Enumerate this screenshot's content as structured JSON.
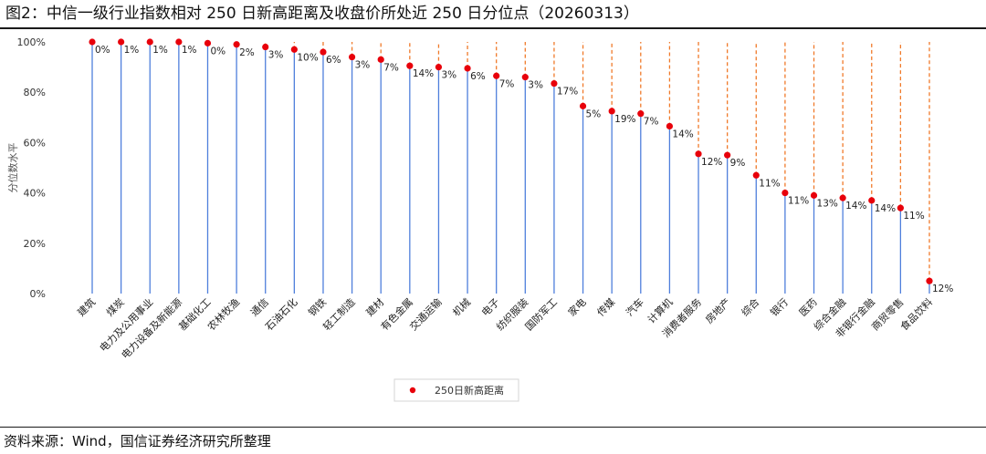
{
  "title": "图2：中信一级行业指数相对 250 日新高距离及收盘价所处近 250 日分位点（20260313）",
  "source": "资料来源：Wind，国信证券经济研究所整理",
  "chart_data": {
    "type": "scatter",
    "ylabel": "分位数水平",
    "ylim": [
      0,
      100
    ],
    "yticks": [
      "0%",
      "20%",
      "40%",
      "60%",
      "80%",
      "100%"
    ],
    "legend": {
      "label": "250日新高距离",
      "placement": "bottom"
    },
    "colors": {
      "point": "#e8000b",
      "stem_solid": "#4f7fdc",
      "stem_dash": "#f07a2a"
    },
    "categories": [
      "建筑",
      "煤炭",
      "电力及公用事业",
      "电力设备及新能源",
      "基础化工",
      "农林牧渔",
      "通信",
      "石油石化",
      "钢铁",
      "轻工制造",
      "建材",
      "有色金属",
      "交通运输",
      "机械",
      "电子",
      "纺织服装",
      "国防军工",
      "家电",
      "传媒",
      "汽车",
      "计算机",
      "消费者服务",
      "房地产",
      "综合",
      "银行",
      "医药",
      "综合金融",
      "非银行金融",
      "商贸零售",
      "食品饮料"
    ],
    "values": [
      100,
      100,
      100,
      100,
      99.5,
      99,
      98,
      97,
      96,
      94,
      93,
      90.5,
      90,
      89.5,
      86.5,
      86,
      83.5,
      74.5,
      72.5,
      71.5,
      66.5,
      55.5,
      55,
      47,
      40,
      39,
      38,
      37,
      34,
      5
    ],
    "labels": [
      "0%",
      "1%",
      "1%",
      "1%",
      "0%",
      "2%",
      "3%",
      "10%",
      "6%",
      "3%",
      "7%",
      "14%",
      "3%",
      "6%",
      "7%",
      "3%",
      "17%",
      "5%",
      "19%",
      "7%",
      "14%",
      "12%",
      "9%",
      "11%",
      "11%",
      "13%",
      "14%",
      "14%",
      "11%",
      "12%"
    ]
  }
}
